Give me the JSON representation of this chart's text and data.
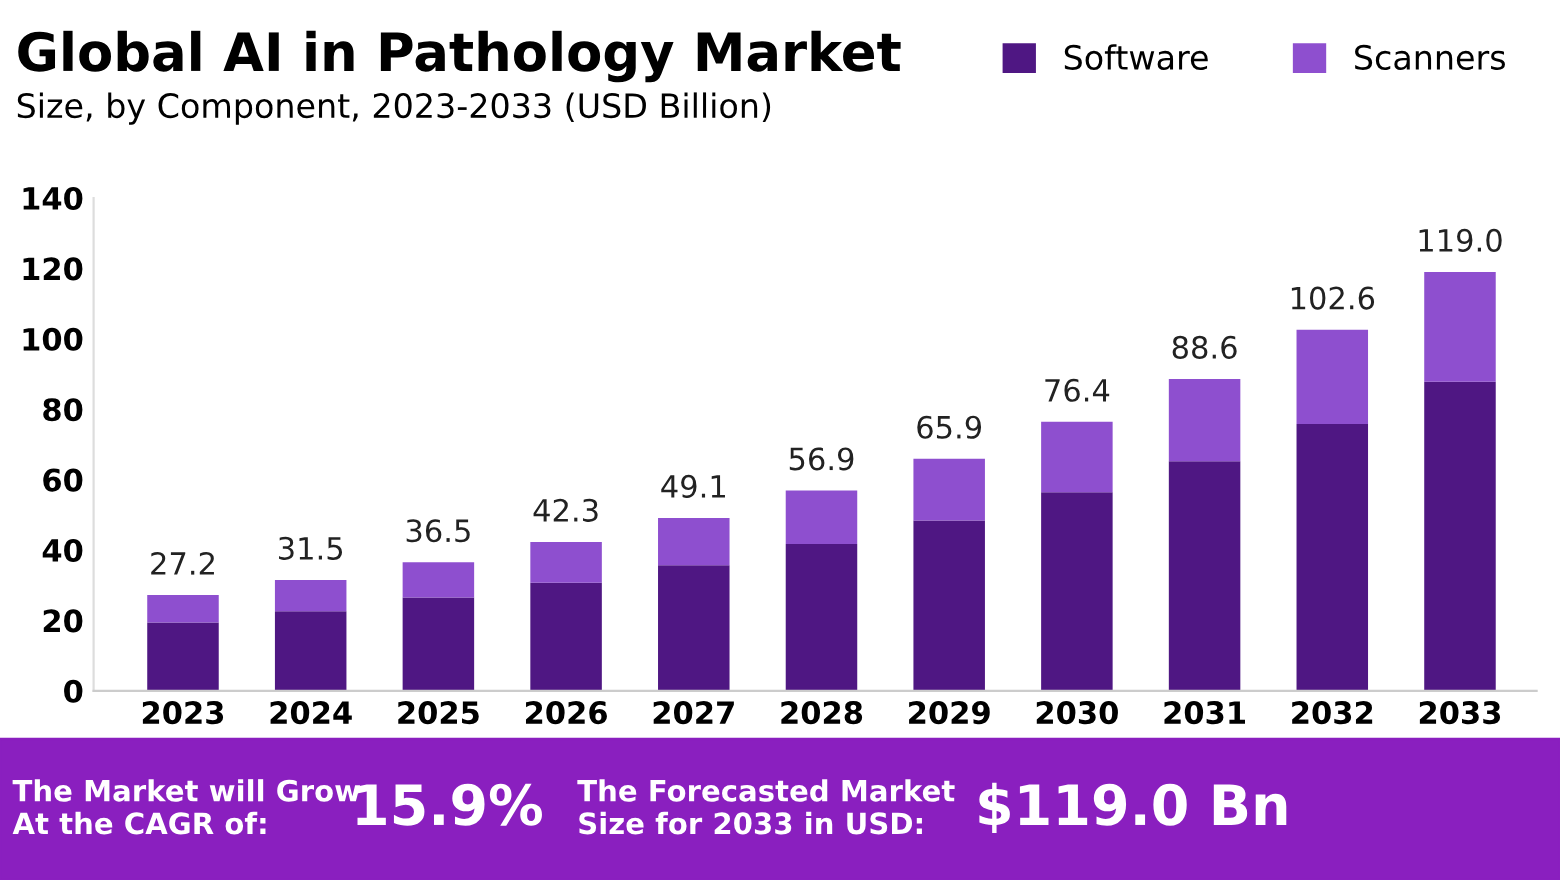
{
  "chart_data": {
    "type": "bar",
    "title": "Global AI in Pathology Market",
    "subtitle": "Size, by Component, 2023-2033 (USD Billion)",
    "categories": [
      "2023",
      "2024",
      "2025",
      "2026",
      "2027",
      "2028",
      "2029",
      "2030",
      "2031",
      "2032",
      "2033"
    ],
    "stacked": true,
    "series": [
      {
        "name": "Software",
        "color": "#4f1783",
        "values": [
          19.4,
          22.6,
          26.5,
          30.7,
          35.7,
          41.7,
          48.4,
          56.4,
          65.2,
          75.8,
          87.8
        ]
      },
      {
        "name": "Scanners",
        "color": "#8e4fcf",
        "values": [
          7.8,
          8.9,
          10.0,
          11.6,
          13.4,
          15.2,
          17.5,
          20.0,
          23.4,
          26.8,
          31.2
        ]
      }
    ],
    "totals": [
      "27.2",
      "31.5",
      "36.5",
      "42.3",
      "49.1",
      "56.9",
      "65.9",
      "76.4",
      "88.6",
      "102.6",
      "119.0"
    ],
    "ylim": [
      0,
      140
    ],
    "yticks": [
      0,
      20,
      40,
      60,
      80,
      100,
      120,
      140
    ],
    "grid": false,
    "legend": "top right",
    "annotations": [
      "The Market will Grow\nAt the CAGR of:",
      "15.9%",
      "The Forecasted Market\nSize for 2033 in USD:",
      "$119.0 Bn"
    ]
  }
}
